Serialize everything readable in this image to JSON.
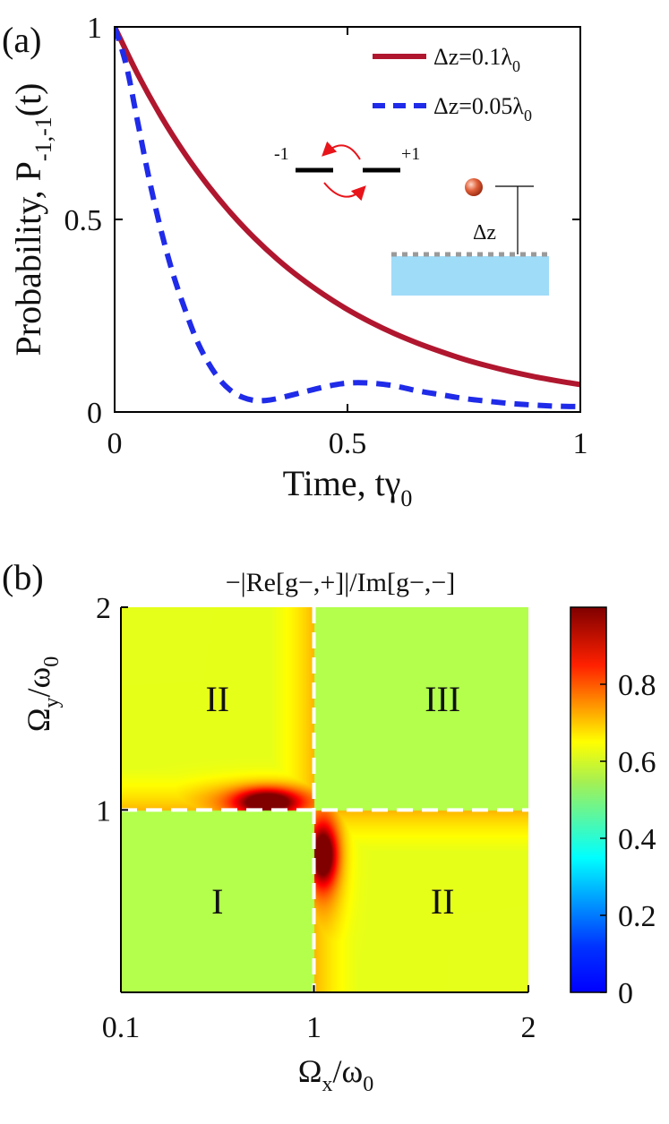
{
  "chart_data": [
    {
      "panel_label": "(a)",
      "type": "line",
      "xlabel": "Time, tγ",
      "xlabel_sub": "0",
      "ylabel": "Probability, P",
      "ylabel_sub": "-1,-1",
      "ylabel_tail": "(t)",
      "xlim": [
        0,
        1
      ],
      "ylim": [
        0,
        1
      ],
      "xticks": [
        0,
        0.5,
        1
      ],
      "xtick_labels": [
        "0",
        "0.5",
        "1"
      ],
      "yticks": [
        0,
        0.5,
        1
      ],
      "ytick_labels": [
        "0",
        "0.5",
        "1"
      ],
      "grid": false,
      "legend_position": "top-right",
      "series": [
        {
          "name": "Δz=0.1λ",
          "name_sub": "0",
          "style": "solid",
          "color": "#b0172f",
          "x": [
            0.0,
            0.05,
            0.1,
            0.15,
            0.2,
            0.25,
            0.3,
            0.35,
            0.4,
            0.45,
            0.5,
            0.55,
            0.6,
            0.65,
            0.7,
            0.75,
            0.8,
            0.85,
            0.9,
            0.95,
            1.0
          ],
          "y": [
            1.0,
            0.876,
            0.767,
            0.672,
            0.589,
            0.516,
            0.452,
            0.396,
            0.347,
            0.304,
            0.266,
            0.233,
            0.204,
            0.179,
            0.157,
            0.137,
            0.12,
            0.105,
            0.092,
            0.081,
            0.071
          ]
        },
        {
          "name": "Δz=0.05λ",
          "name_sub": "0",
          "style": "dashed",
          "color": "#1f2be8",
          "x": [
            0.0,
            0.025,
            0.05,
            0.075,
            0.1,
            0.125,
            0.15,
            0.175,
            0.2,
            0.225,
            0.25,
            0.275,
            0.3,
            0.325,
            0.35,
            0.4,
            0.45,
            0.5,
            0.55,
            0.6,
            0.65,
            0.7,
            0.75,
            0.8,
            0.85,
            0.9,
            0.95,
            1.0
          ],
          "y": [
            1.0,
            0.9,
            0.75,
            0.6,
            0.47,
            0.36,
            0.27,
            0.19,
            0.13,
            0.085,
            0.055,
            0.038,
            0.03,
            0.03,
            0.035,
            0.05,
            0.065,
            0.075,
            0.075,
            0.068,
            0.055,
            0.045,
            0.035,
            0.028,
            0.022,
            0.018,
            0.015,
            0.014
          ]
        }
      ],
      "inset": {
        "level_left": "-1",
        "level_right": "+1",
        "distance_label": "Δz"
      }
    },
    {
      "panel_label": "(b)",
      "type": "heatmap",
      "title": "−|Re[g−,+]|/Im[g−,−]",
      "xlabel": "Ω",
      "xlabel_sub": "x",
      "xlabel_tail": "/ω",
      "xlabel_tail_sub": "0",
      "ylabel": "Ω",
      "ylabel_sub": "y",
      "ylabel_tail": "/ω",
      "ylabel_tail_sub": "0",
      "xlim": [
        0.1,
        2
      ],
      "ylim": [
        0.1,
        2
      ],
      "xticks": [
        0.1,
        1,
        2
      ],
      "xtick_labels": [
        "0.1",
        "1",
        "2"
      ],
      "yticks": [
        1,
        2
      ],
      "ytick_labels": [
        "1",
        "2"
      ],
      "colorbar": {
        "range": [
          0,
          1
        ],
        "ticks": [
          0,
          0.2,
          0.4,
          0.6,
          0.8
        ],
        "tick_labels": [
          "0",
          "0.2",
          "0.4",
          "0.6",
          "0.8"
        ],
        "colormap": "jet"
      },
      "dashed_lines": {
        "x": 1,
        "y": 1,
        "color": "#ffffff"
      },
      "regions": [
        {
          "label": "I",
          "x": 0.55,
          "y": 0.55,
          "color": "#ffffff"
        },
        {
          "label": "II",
          "x": 0.55,
          "y": 1.55,
          "color": "#111111"
        },
        {
          "label": "III",
          "x": 1.6,
          "y": 1.55,
          "color": "#ffffff"
        },
        {
          "label": "II",
          "x": 1.6,
          "y": 0.55,
          "color": "#111111"
        }
      ],
      "peaks": [
        {
          "x": 0.78,
          "y": 1.04,
          "value": 0.97
        },
        {
          "x": 1.04,
          "y": 0.78,
          "value": 0.97
        }
      ]
    }
  ]
}
